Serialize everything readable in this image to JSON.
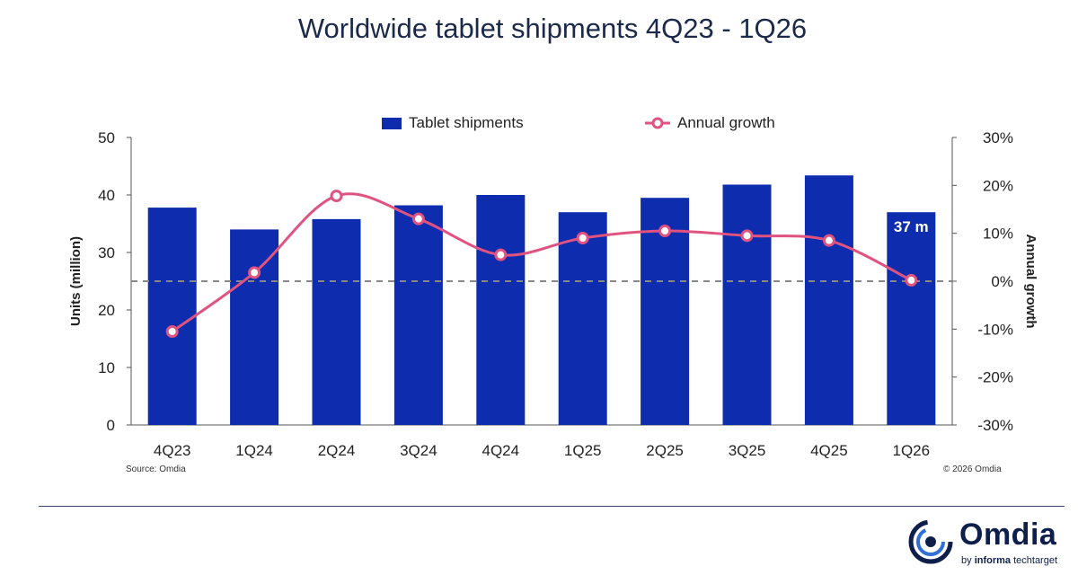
{
  "title": "Worldwide tablet shipments 4Q23 - 1Q26",
  "legend": {
    "bar_label": "Tablet shipments",
    "line_label": "Annual growth"
  },
  "source": "Source: Omdia",
  "copyright": "© 2026 Omdia",
  "logo": {
    "name": "Omdia",
    "tagline_prefix": "by",
    "tagline_brand": "informa",
    "tagline_suffix": "techtarget"
  },
  "colors": {
    "bar": "#0d2dae",
    "line": "#e0527f",
    "zero_line": "#888888",
    "text": "#222222",
    "title": "#1b2a4a"
  },
  "chart_data": {
    "type": "bar",
    "categories": [
      "4Q23",
      "1Q24",
      "2Q24",
      "3Q24",
      "4Q24",
      "1Q25",
      "2Q25",
      "3Q25",
      "4Q25",
      "1Q26"
    ],
    "series": [
      {
        "name": "Tablet shipments",
        "type": "bar",
        "axis": "left",
        "values": [
          37.8,
          34.0,
          35.8,
          38.2,
          40.0,
          37.0,
          39.5,
          41.8,
          43.4,
          37.0
        ]
      },
      {
        "name": "Annual growth",
        "type": "line",
        "axis": "right",
        "smooth": true,
        "values": [
          -10.5,
          1.8,
          17.8,
          13.0,
          5.5,
          9.0,
          10.5,
          9.5,
          8.5,
          0.2
        ]
      }
    ],
    "data_labels": [
      {
        "category": "1Q26",
        "text": "37 m"
      }
    ],
    "ylabel": "Units (million)",
    "y2label": "Annual growth",
    "ylim": [
      0,
      50
    ],
    "y2lim": [
      -30,
      30
    ],
    "yticks": [
      "0",
      "10",
      "20",
      "30",
      "40",
      "50"
    ],
    "y2ticks": [
      "-30%",
      "-20%",
      "-10%",
      "0%",
      "10%",
      "20%",
      "30%"
    ],
    "zero_reference_line": "dashed",
    "grid": false,
    "legend_position": "top-center"
  }
}
